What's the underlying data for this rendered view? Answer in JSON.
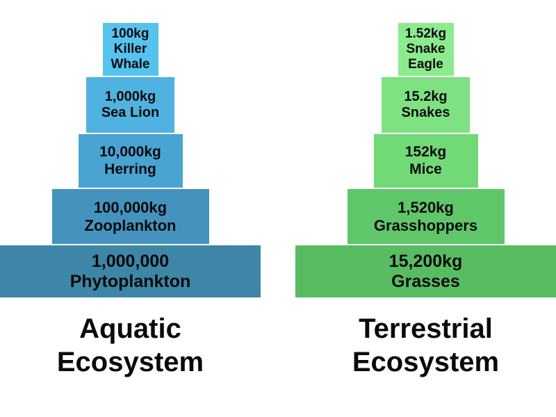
{
  "pyramids": [
    {
      "name": "Aquatic Ecosystem",
      "title_line1": "Aquatic",
      "title_line2": "Ecosystem",
      "tiers": [
        {
          "amount": "100kg",
          "name": "Killer Whale",
          "color": "#56C2EE"
        },
        {
          "amount": "1,000kg",
          "name": "Sea Lion",
          "color": "#4FB2E0"
        },
        {
          "amount": "10,000kg",
          "name": "Herring",
          "color": "#4AA4D3"
        },
        {
          "amount": "100,000kg",
          "name": "Zooplankton",
          "color": "#4493BE"
        },
        {
          "amount": "1,000,000",
          "name": "Phytoplankton",
          "color": "#3E86A8"
        }
      ]
    },
    {
      "name": "Terrestrial Ecosystem",
      "title_line1": "Terrestrial",
      "title_line2": "Ecosystem",
      "tiers": [
        {
          "amount": "1.52kg",
          "name": "Snake Eagle",
          "color": "#8BEB8D"
        },
        {
          "amount": "15.2kg",
          "name": "Snakes",
          "color": "#7EE282"
        },
        {
          "amount": "152kg",
          "name": "Mice",
          "color": "#72D977"
        },
        {
          "amount": "1,520kg",
          "name": "Grasshoppers",
          "color": "#5FC769"
        },
        {
          "amount": "15,200kg",
          "name": "Grasses",
          "color": "#58BD62"
        }
      ]
    }
  ],
  "text_color": "#0a0a0a",
  "background_color": "#ffffff"
}
